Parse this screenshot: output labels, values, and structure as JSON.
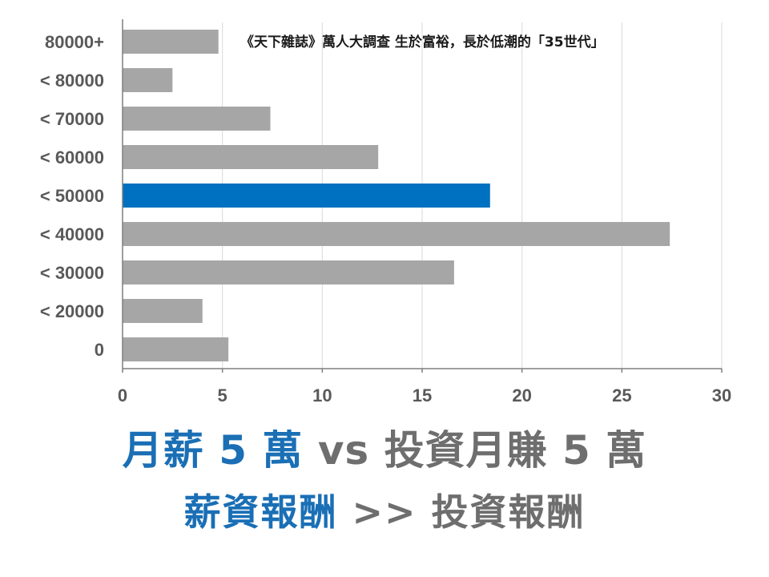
{
  "chart_data": {
    "type": "bar",
    "orientation": "horizontal",
    "categories": [
      "80000+",
      "< 80000",
      "< 70000",
      "< 60000",
      "< 50000",
      "< 40000",
      "< 30000",
      "< 20000",
      "0"
    ],
    "values": [
      4.8,
      2.5,
      7.4,
      12.8,
      18.4,
      27.4,
      16.6,
      4.0,
      5.3
    ],
    "highlight_index": 4,
    "xlim": [
      0,
      30
    ],
    "xticks": [
      0,
      5,
      10,
      15,
      20,
      25,
      30
    ],
    "grid": "vertical",
    "colors": {
      "bar": "#a6a6a6",
      "highlight": "#0070c0",
      "grid": "#d9d9d9",
      "axis": "#7f7f7f",
      "tick_label": "#595959"
    }
  },
  "annotation": {
    "source": "《天下雜誌》萬人大調查 生於富裕，長於低潮的「35世代」"
  },
  "headline": {
    "line1_blue": "月薪 5 萬",
    "line1_gray": " vs 投資月賺 5 萬",
    "line2_blue": "薪資報酬",
    "line2_gray": " >> 投資報酬"
  }
}
